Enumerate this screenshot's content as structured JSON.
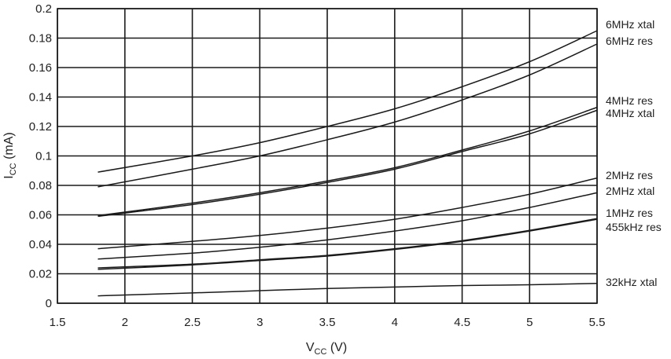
{
  "chart_data": {
    "type": "line",
    "title": "",
    "xlabel": {
      "main": "V",
      "sub": "CC",
      "unit": " (V)"
    },
    "ylabel": {
      "main": "I",
      "sub": "CC",
      "unit": " (mA)"
    },
    "xlim": [
      1.5,
      5.5
    ],
    "ylim": [
      0,
      0.2
    ],
    "xticks": [
      1.5,
      2,
      2.5,
      3,
      3.5,
      4,
      4.5,
      5,
      5.5
    ],
    "yticks": [
      0,
      0.02,
      0.04,
      0.06,
      0.08,
      0.1,
      0.12,
      0.14,
      0.16,
      0.18,
      0.2
    ],
    "xtick_labels": [
      "1.5",
      "2",
      "2.5",
      "3",
      "3.5",
      "4",
      "4.5",
      "5",
      "5.5"
    ],
    "ytick_labels": [
      "0",
      "0.02",
      "0.04",
      "0.06",
      "0.08",
      "0.1",
      "0.12",
      "0.14",
      "0.16",
      "0.18",
      "0.2"
    ],
    "grid": true,
    "legend": "none",
    "series": [
      {
        "name": "6MHz xtal",
        "x": [
          1.8,
          2.5,
          3,
          3.5,
          4,
          4.5,
          5,
          5.5
        ],
        "y": [
          0.089,
          0.1,
          0.109,
          0.12,
          0.132,
          0.147,
          0.164,
          0.185
        ]
      },
      {
        "name": "6MHz res",
        "x": [
          1.8,
          2.5,
          3,
          3.5,
          4,
          4.5,
          5,
          5.5
        ],
        "y": [
          0.079,
          0.091,
          0.1,
          0.111,
          0.123,
          0.138,
          0.155,
          0.176
        ]
      },
      {
        "name": "4MHz res",
        "x": [
          1.8,
          2.5,
          3,
          3.5,
          4,
          4.5,
          5,
          5.5
        ],
        "y": [
          0.0595,
          0.068,
          0.075,
          0.083,
          0.092,
          0.104,
          0.117,
          0.133
        ]
      },
      {
        "name": "4MHz xtal",
        "x": [
          1.8,
          2.5,
          3,
          3.5,
          4,
          4.5,
          5,
          5.5
        ],
        "y": [
          0.059,
          0.067,
          0.074,
          0.082,
          0.091,
          0.103,
          0.115,
          0.131
        ]
      },
      {
        "name": "2MHz res",
        "x": [
          1.8,
          2.5,
          3,
          3.5,
          4,
          4.5,
          5,
          5.5
        ],
        "y": [
          0.037,
          0.042,
          0.046,
          0.051,
          0.057,
          0.065,
          0.074,
          0.085
        ]
      },
      {
        "name": "2MHz xtal",
        "x": [
          1.8,
          2.5,
          3,
          3.5,
          4,
          4.5,
          5,
          5.5
        ],
        "y": [
          0.03,
          0.034,
          0.038,
          0.043,
          0.049,
          0.056,
          0.065,
          0.075
        ]
      },
      {
        "name": "1MHz res",
        "x": [
          1.8,
          2.5,
          3,
          3.5,
          4,
          4.5,
          5,
          5.5
        ],
        "y": [
          0.024,
          0.0265,
          0.0295,
          0.0325,
          0.037,
          0.0425,
          0.0495,
          0.0575
        ]
      },
      {
        "name": "455kHz res",
        "x": [
          1.8,
          2.5,
          3,
          3.5,
          4,
          4.5,
          5,
          5.5
        ],
        "y": [
          0.023,
          0.026,
          0.029,
          0.032,
          0.0365,
          0.042,
          0.049,
          0.057
        ]
      },
      {
        "name": "32kHz xtal",
        "x": [
          1.8,
          2.5,
          3,
          3.5,
          4,
          4.5,
          5,
          5.5
        ],
        "y": [
          0.005,
          0.007,
          0.0085,
          0.01,
          0.011,
          0.012,
          0.0125,
          0.0135
        ]
      }
    ],
    "series_label_order": [
      "6MHz xtal",
      "6MHz res",
      "4MHz res",
      "4MHz xtal",
      "2MHz res",
      "2MHz xtal",
      "1MHz res",
      "455kHz res",
      "32kHz xtal"
    ]
  }
}
